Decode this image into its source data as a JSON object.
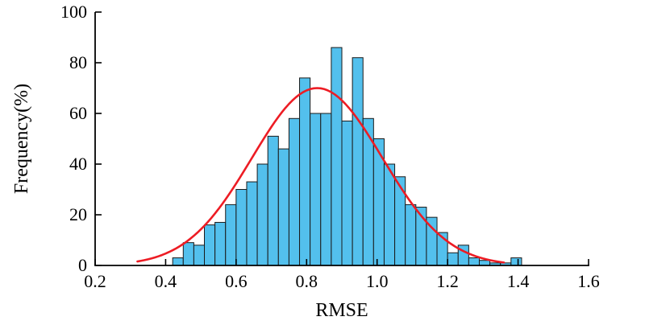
{
  "figure": {
    "background": "#ffffff"
  },
  "chart_data": {
    "type": "histogram-with-fit-line",
    "title": "",
    "xlabel": "RMSE",
    "ylabel": "Frequency(%)",
    "xlim": [
      0.2,
      1.6
    ],
    "ylim": [
      0,
      100
    ],
    "x_tick_values": [
      0.2,
      0.4,
      0.6,
      0.8,
      1.0,
      1.2,
      1.4,
      1.6
    ],
    "x_tick_labels": [
      "0.2",
      "0.4",
      "0.6",
      "0.8",
      "1.0",
      "1.2",
      "1.4",
      "1.6"
    ],
    "y_tick_values": [
      0,
      20,
      40,
      60,
      80,
      100
    ],
    "y_tick_labels": [
      "0",
      "20",
      "40",
      "60",
      "80",
      "100"
    ],
    "grid": false,
    "legend": "none",
    "bar_color": "#53c0ed",
    "bar_edge_color": "#1a1a1a",
    "curve_color": "#ed1c24",
    "axis_color": "#000000",
    "bin_width": 0.03,
    "bars": [
      [
        0.435,
        3
      ],
      [
        0.465,
        9
      ],
      [
        0.495,
        8
      ],
      [
        0.525,
        16
      ],
      [
        0.555,
        17
      ],
      [
        0.585,
        24
      ],
      [
        0.615,
        30
      ],
      [
        0.645,
        33
      ],
      [
        0.675,
        40
      ],
      [
        0.705,
        51
      ],
      [
        0.735,
        46
      ],
      [
        0.765,
        58
      ],
      [
        0.795,
        74
      ],
      [
        0.825,
        60
      ],
      [
        0.855,
        60
      ],
      [
        0.885,
        86
      ],
      [
        0.915,
        57
      ],
      [
        0.945,
        82
      ],
      [
        0.975,
        58
      ],
      [
        1.005,
        50
      ],
      [
        1.035,
        40
      ],
      [
        1.065,
        35
      ],
      [
        1.095,
        24
      ],
      [
        1.125,
        23
      ],
      [
        1.155,
        19
      ],
      [
        1.185,
        13
      ],
      [
        1.215,
        5
      ],
      [
        1.245,
        8
      ],
      [
        1.275,
        3
      ],
      [
        1.305,
        2
      ],
      [
        1.335,
        1
      ],
      [
        1.365,
        1
      ],
      [
        1.395,
        3
      ]
    ],
    "gaussian_fit": {
      "mean": 0.83,
      "sd": 0.185,
      "peak": 70,
      "x_start": 0.32,
      "x_end": 1.36
    }
  }
}
